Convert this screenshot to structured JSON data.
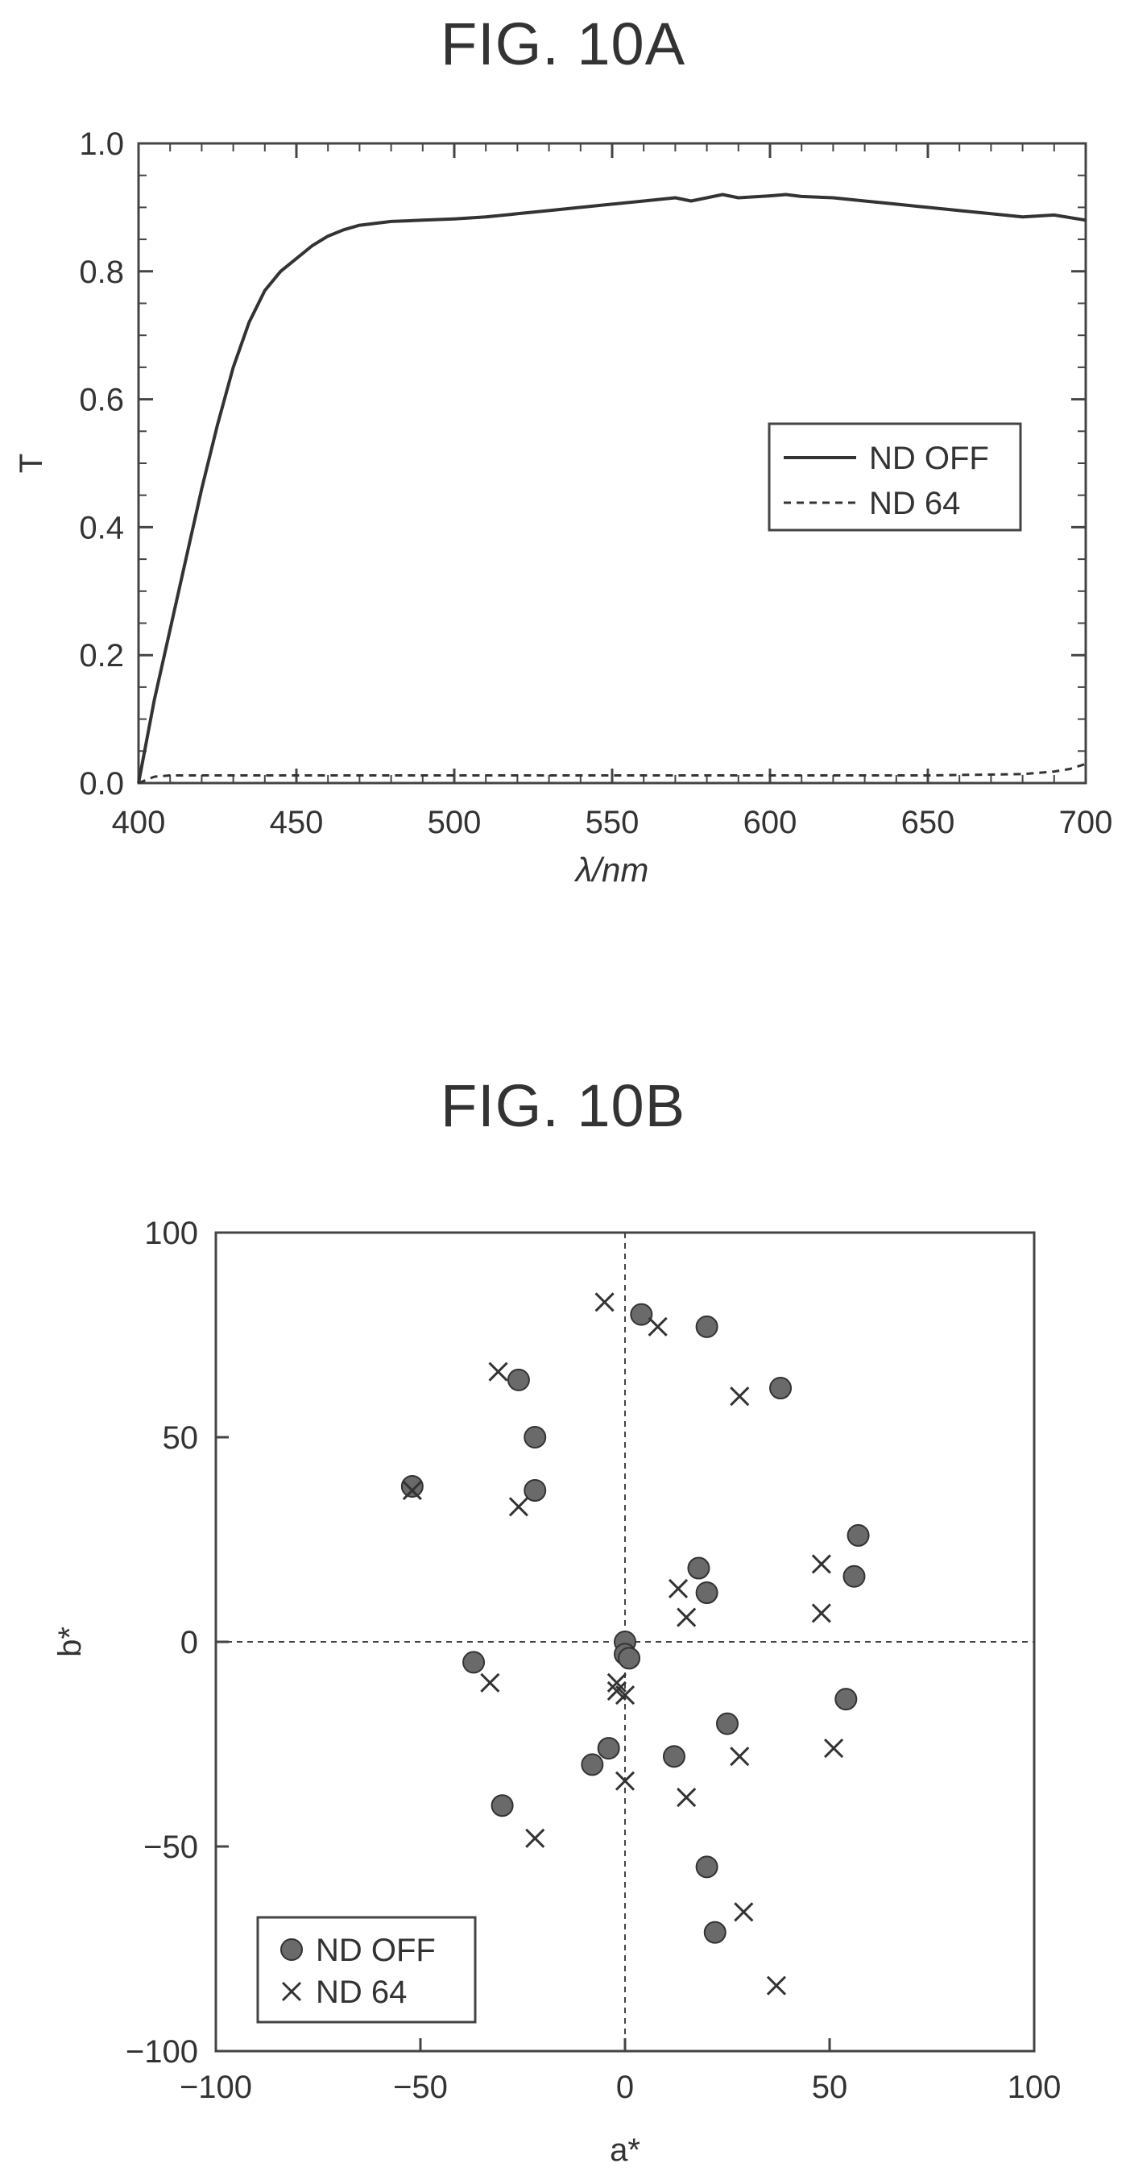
{
  "chart_data": [
    {
      "type": "line",
      "title": "FIG. 10A",
      "xlabel": "λ/nm",
      "ylabel": "T",
      "xlim": [
        400,
        700
      ],
      "ylim": [
        0.0,
        1.0
      ],
      "xticks": [
        400,
        450,
        500,
        550,
        600,
        650,
        700
      ],
      "yticks": [
        0.0,
        0.2,
        0.4,
        0.6,
        0.8,
        1.0
      ],
      "ytick_labels": [
        "0.0",
        "0.2",
        "0.4",
        "0.6",
        "0.8",
        "1.0"
      ],
      "grid": false,
      "legend": "center-right",
      "series": [
        {
          "name": "ND OFF",
          "style": "solid",
          "x": [
            400,
            405,
            410,
            415,
            420,
            425,
            430,
            435,
            440,
            445,
            450,
            455,
            460,
            465,
            470,
            480,
            490,
            500,
            510,
            520,
            530,
            540,
            550,
            560,
            570,
            575,
            580,
            585,
            590,
            600,
            605,
            610,
            620,
            630,
            640,
            650,
            660,
            670,
            680,
            690,
            700
          ],
          "y": [
            0.0,
            0.13,
            0.24,
            0.35,
            0.46,
            0.56,
            0.65,
            0.72,
            0.77,
            0.8,
            0.82,
            0.84,
            0.855,
            0.865,
            0.872,
            0.878,
            0.88,
            0.882,
            0.885,
            0.89,
            0.895,
            0.9,
            0.905,
            0.91,
            0.915,
            0.91,
            0.915,
            0.92,
            0.915,
            0.918,
            0.92,
            0.917,
            0.915,
            0.91,
            0.905,
            0.9,
            0.895,
            0.89,
            0.885,
            0.888,
            0.88
          ]
        },
        {
          "name": "ND 64",
          "style": "dashed",
          "x": [
            400,
            405,
            410,
            420,
            450,
            500,
            550,
            600,
            650,
            680,
            690,
            695,
            700
          ],
          "y": [
            0.0,
            0.01,
            0.012,
            0.012,
            0.012,
            0.012,
            0.012,
            0.012,
            0.012,
            0.014,
            0.018,
            0.022,
            0.03
          ]
        }
      ]
    },
    {
      "type": "scatter",
      "title": "FIG. 10B",
      "xlabel": "a*",
      "ylabel": "b*",
      "xlim": [
        -100,
        100
      ],
      "ylim": [
        -100,
        100
      ],
      "xticks": [
        -100,
        -50,
        0,
        50,
        100
      ],
      "yticks": [
        -100,
        -50,
        0,
        50,
        100
      ],
      "grid": false,
      "zero_lines": true,
      "legend": "bottom-left",
      "series": [
        {
          "name": "ND OFF",
          "marker": "filled-circle",
          "points": [
            [
              -52,
              38
            ],
            [
              -26,
              64
            ],
            [
              -22,
              50
            ],
            [
              -22,
              37
            ],
            [
              -37,
              -5
            ],
            [
              -30,
              -40
            ],
            [
              -8,
              -30
            ],
            [
              -4,
              -26
            ],
            [
              0,
              0
            ],
            [
              0,
              -3
            ],
            [
              1,
              -4
            ],
            [
              4,
              80
            ],
            [
              20,
              77
            ],
            [
              38,
              62
            ],
            [
              18,
              18
            ],
            [
              20,
              12
            ],
            [
              12,
              -28
            ],
            [
              25,
              -20
            ],
            [
              20,
              -55
            ],
            [
              22,
              -71
            ],
            [
              57,
              26
            ],
            [
              56,
              16
            ],
            [
              54,
              -14
            ]
          ]
        },
        {
          "name": "ND 64",
          "marker": "x",
          "points": [
            [
              -52,
              37
            ],
            [
              -31,
              66
            ],
            [
              -26,
              33
            ],
            [
              -33,
              -10
            ],
            [
              -22,
              -48
            ],
            [
              -5,
              83
            ],
            [
              8,
              77
            ],
            [
              28,
              60
            ],
            [
              -2,
              -10
            ],
            [
              -2,
              -12
            ],
            [
              0,
              -13
            ],
            [
              0,
              -34
            ],
            [
              13,
              13
            ],
            [
              15,
              6
            ],
            [
              15,
              -38
            ],
            [
              28,
              -28
            ],
            [
              29,
              -66
            ],
            [
              37,
              -84
            ],
            [
              48,
              19
            ],
            [
              48,
              7
            ],
            [
              51,
              -26
            ]
          ]
        }
      ]
    }
  ]
}
